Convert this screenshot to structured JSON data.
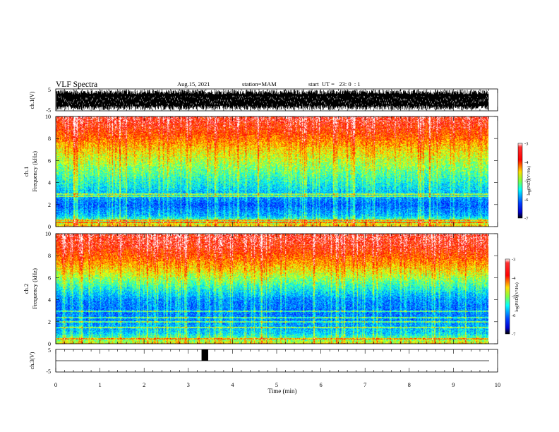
{
  "header": {
    "title": "VLF Spectra",
    "date": "Aug.15, 2021",
    "station": "station=MAM",
    "start_ut": "start  UT =   23: 0  : 1"
  },
  "colors": {
    "colormap": [
      "#7a0000",
      "#ff0000",
      "#ff9a00",
      "#ffff00",
      "#7fff3f",
      "#00ffff",
      "#0080ff",
      "#0000ff",
      "#000080"
    ],
    "trace": "#000000",
    "pulse": "#000000"
  },
  "chart_data": [
    {
      "type": "line",
      "name": "waveform-ch1",
      "ylabel": "ch.1(V)",
      "ylim": [
        -5,
        5
      ],
      "y_ticks": [
        "5",
        "-5"
      ],
      "xlim": [
        0,
        10
      ],
      "description_values": "dense broadband noise filling roughly -4.5 V to +4.5 V across the full record, record ends near 9.8 min"
    },
    {
      "type": "heatmap",
      "name": "spectrogram-ch1",
      "ylabel": "ch.1\nFrequency (kHz)",
      "ylim": [
        0,
        10
      ],
      "y_ticks": [
        "0",
        "2",
        "4",
        "6",
        "8",
        "10"
      ],
      "xlim": [
        0,
        10
      ],
      "record_end_min": 9.8,
      "colorbar": {
        "label": "log(PSD)(V²/Hz)",
        "range": [
          -7,
          -3
        ],
        "ticks": [
          "-3",
          "-4",
          "-5",
          "-6",
          "-7"
        ]
      },
      "profile_khz": [
        0,
        1,
        2,
        3,
        4,
        5,
        6,
        7,
        8,
        9,
        10
      ],
      "profile_log_psd": [
        -4.2,
        -5.6,
        -6.0,
        -5.6,
        -5.3,
        -5.0,
        -4.7,
        -4.4,
        -4.0,
        -3.7,
        -3.5
      ],
      "lines_khz": [
        0.4,
        0.6,
        2.8,
        3.0
      ]
    },
    {
      "type": "heatmap",
      "name": "spectrogram-ch2",
      "ylabel": "ch.2\nFrequency (kHz)",
      "ylim": [
        0,
        10
      ],
      "y_ticks": [
        "0",
        "2",
        "4",
        "6",
        "8",
        "10"
      ],
      "xlim": [
        0,
        10
      ],
      "record_end_min": 9.8,
      "colorbar": {
        "label": "log(PSD)(V²/Hz)",
        "range": [
          -7,
          -3
        ],
        "ticks": [
          "-3",
          "-4",
          "-5",
          "-6",
          "-7"
        ]
      },
      "profile_khz": [
        0,
        1,
        2,
        3,
        4,
        5,
        6,
        7,
        8,
        9,
        10
      ],
      "profile_log_psd": [
        -4.5,
        -5.5,
        -5.8,
        -5.9,
        -5.8,
        -5.3,
        -4.8,
        -4.3,
        -3.9,
        -3.6,
        -3.5
      ],
      "lines_khz": [
        0.5,
        1.5,
        2.0,
        2.4,
        3.0
      ]
    },
    {
      "type": "line",
      "name": "waveform-ch3",
      "ylabel": "ch.3(V)",
      "ylim": [
        -5,
        5
      ],
      "y_ticks": [
        "5",
        "-5"
      ],
      "xlim": [
        0,
        10
      ],
      "baseline_v": 0,
      "pulse": {
        "start_min": 3.3,
        "end_min": 3.45,
        "top_v": 5,
        "bottom_v": 0
      }
    }
  ],
  "x_axis": {
    "label": "Time (min)",
    "ticks": [
      "0",
      "1",
      "2",
      "3",
      "4",
      "5",
      "6",
      "7",
      "8",
      "9",
      "10"
    ]
  }
}
